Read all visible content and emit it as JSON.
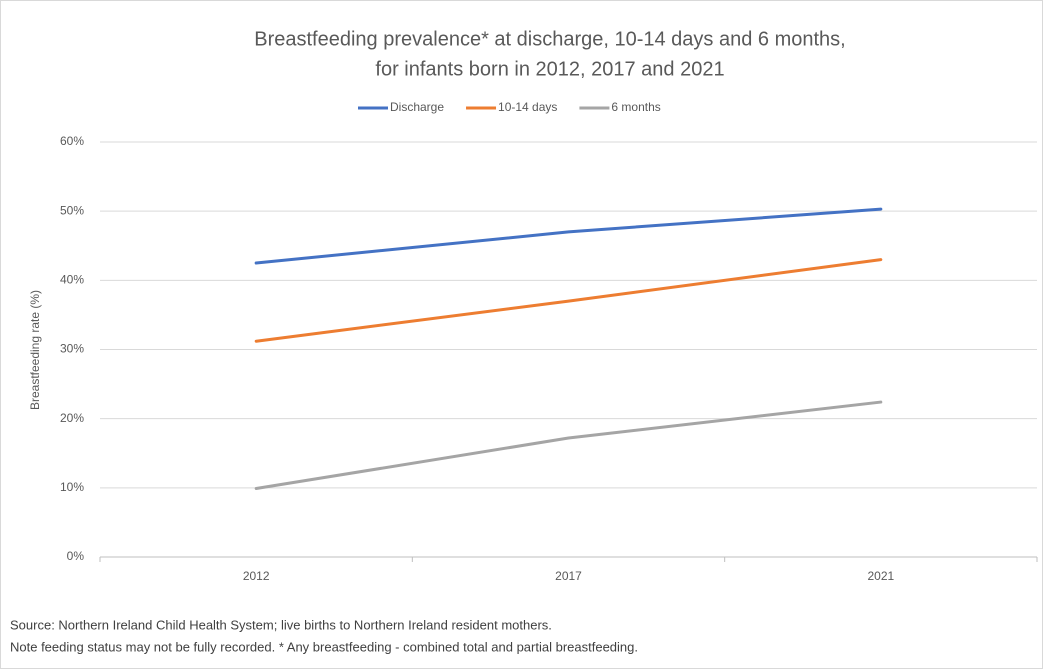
{
  "chart_data": {
    "type": "line",
    "title": [
      "Breastfeeding prevalence* at discharge, 10-14 days and 6 months,",
      "for infants born in 2012, 2017 and 2021"
    ],
    "y_label": "Breastfeeding rate (%)",
    "categories": [
      "2012",
      "2017",
      "2021"
    ],
    "series": [
      {
        "name": "Discharge",
        "color": "#4472c4",
        "values": [
          42.5,
          47.0,
          50.3
        ]
      },
      {
        "name": "10-14 days",
        "color": "#ed7d31",
        "values": [
          31.2,
          37.0,
          43.0
        ]
      },
      {
        "name": "6 months",
        "color": "#a5a5a5",
        "values": [
          9.9,
          17.2,
          22.4
        ]
      }
    ],
    "ylim": [
      0,
      60
    ],
    "yticks": [
      {
        "value": 0,
        "label": "0%"
      },
      {
        "value": 10,
        "label": "10%"
      },
      {
        "value": 20,
        "label": "20%"
      },
      {
        "value": 30,
        "label": "30%"
      },
      {
        "value": 40,
        "label": "40%"
      },
      {
        "value": 50,
        "label": "50%"
      },
      {
        "value": 60,
        "label": "60%"
      }
    ],
    "grid": true,
    "legend": "top",
    "notes": [
      "Source: Northern Ireland Child Health System; live births to Northern Ireland resident mothers.",
      "Note feeding status may not be fully recorded. * Any breastfeeding - combined total and partial breastfeeding."
    ]
  }
}
